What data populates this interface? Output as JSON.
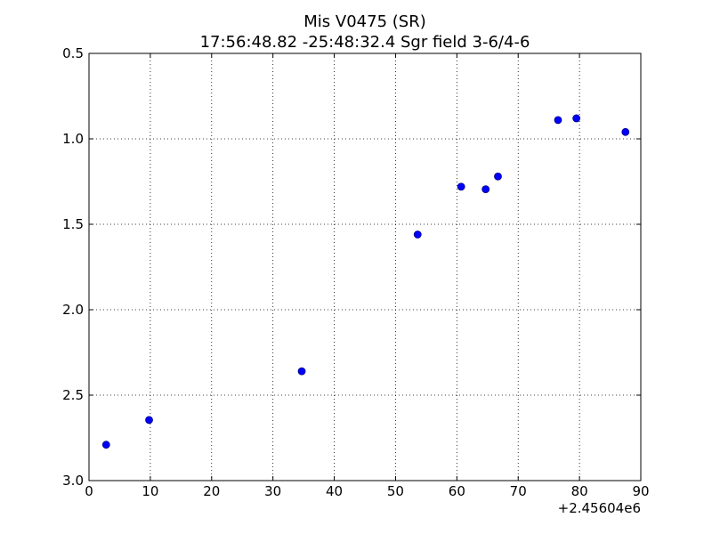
{
  "chart_data": {
    "type": "scatter",
    "title": "Mis V0475 (SR)",
    "subtitle": "17:56:48.82 -25:48:32.4 Sgr field 3-6/4-6",
    "x_offset_label": "+2.45604e6",
    "xlim": [
      0,
      90
    ],
    "ylim": [
      3.0,
      0.5
    ],
    "y_inverted": true,
    "grid": true,
    "x_ticks": [
      "0",
      "10",
      "20",
      "30",
      "40",
      "50",
      "60",
      "70",
      "80",
      "90"
    ],
    "y_ticks": [
      "0.5",
      "1.0",
      "1.5",
      "2.0",
      "2.5",
      "3.0"
    ],
    "x_tick_values": [
      0,
      10,
      20,
      30,
      40,
      50,
      60,
      70,
      80,
      90
    ],
    "y_tick_values": [
      0.5,
      1.0,
      1.5,
      2.0,
      2.5,
      3.0
    ],
    "points": [
      {
        "x": 2.8,
        "y": 2.79,
        "err": 0.02
      },
      {
        "x": 9.8,
        "y": 2.645,
        "err": 0.01
      },
      {
        "x": 34.7,
        "y": 2.36,
        "err": 0.01
      },
      {
        "x": 53.6,
        "y": 1.56,
        "err": 0.01
      },
      {
        "x": 60.7,
        "y": 1.28,
        "err": 0.01
      },
      {
        "x": 64.7,
        "y": 1.295,
        "err": 0.01
      },
      {
        "x": 66.7,
        "y": 1.22,
        "err": 0.01
      },
      {
        "x": 76.5,
        "y": 0.89,
        "err": 0.01
      },
      {
        "x": 79.5,
        "y": 0.88,
        "err": 0.01
      },
      {
        "x": 87.5,
        "y": 0.96,
        "err": 0.01
      }
    ],
    "marker_color": "#0000ff"
  }
}
